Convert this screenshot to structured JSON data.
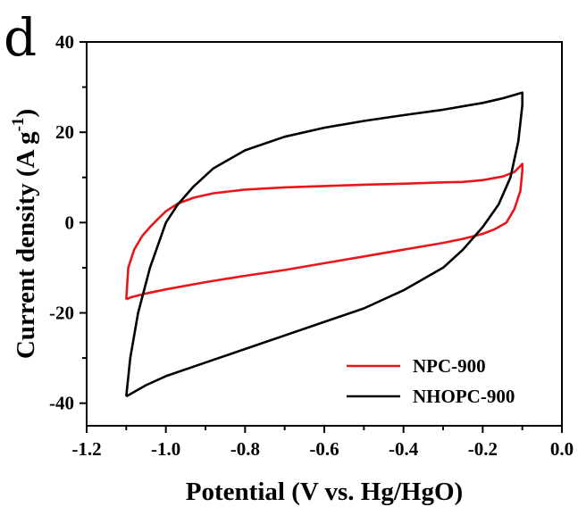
{
  "panel_label": "d",
  "chart_data": {
    "type": "line",
    "title": "",
    "xlabel": "Potential (V vs. Hg/HgO)",
    "ylabel": "Current density (A g",
    "ylabel_unit_superscript": "-1",
    "ylabel_close": ")",
    "xlim": [
      -1.2,
      0.0
    ],
    "ylim": [
      -45,
      40
    ],
    "xticks": [
      -1.2,
      -1.0,
      -0.8,
      -0.6,
      -0.4,
      -0.2,
      0.0
    ],
    "xtick_labels": [
      "-1.2",
      "-1.0",
      "-0.8",
      "-0.6",
      "-0.4",
      "-0.2",
      "0.0"
    ],
    "yticks": [
      -40,
      -20,
      0,
      20,
      40
    ],
    "ytick_labels": [
      "-40",
      "-20",
      "0",
      "20",
      "40"
    ],
    "grid": false,
    "legend_position": "bottom-right",
    "series": [
      {
        "name": "NPC-900",
        "color": "#e8161b",
        "points": [
          [
            -1.1,
            -17.0
          ],
          [
            -1.095,
            -10.0
          ],
          [
            -1.08,
            -6.0
          ],
          [
            -1.06,
            -3.0
          ],
          [
            -1.04,
            -1.0
          ],
          [
            -1.02,
            0.8
          ],
          [
            -1.0,
            2.5
          ],
          [
            -0.97,
            4.2
          ],
          [
            -0.93,
            5.5
          ],
          [
            -0.88,
            6.5
          ],
          [
            -0.8,
            7.3
          ],
          [
            -0.7,
            7.8
          ],
          [
            -0.6,
            8.1
          ],
          [
            -0.5,
            8.4
          ],
          [
            -0.4,
            8.6
          ],
          [
            -0.3,
            8.9
          ],
          [
            -0.25,
            9.0
          ],
          [
            -0.2,
            9.4
          ],
          [
            -0.15,
            10.2
          ],
          [
            -0.12,
            11.2
          ],
          [
            -0.1,
            13.0
          ],
          [
            -0.1,
            11.5
          ],
          [
            -0.105,
            7.0
          ],
          [
            -0.12,
            3.0
          ],
          [
            -0.14,
            0.0
          ],
          [
            -0.17,
            -1.5
          ],
          [
            -0.2,
            -2.5
          ],
          [
            -0.25,
            -3.6
          ],
          [
            -0.3,
            -4.5
          ],
          [
            -0.4,
            -6.0
          ],
          [
            -0.5,
            -7.5
          ],
          [
            -0.6,
            -9.0
          ],
          [
            -0.7,
            -10.5
          ],
          [
            -0.8,
            -11.8
          ],
          [
            -0.9,
            -13.2
          ],
          [
            -1.0,
            -14.8
          ],
          [
            -1.05,
            -15.7
          ],
          [
            -1.09,
            -16.6
          ],
          [
            -1.1,
            -17.0
          ]
        ]
      },
      {
        "name": "NHOPC-900",
        "color": "#000000",
        "points": [
          [
            -1.1,
            -38.5
          ],
          [
            -1.09,
            -30.0
          ],
          [
            -1.07,
            -20.0
          ],
          [
            -1.04,
            -10.0
          ],
          [
            -1.0,
            0.0
          ],
          [
            -0.97,
            4.0
          ],
          [
            -0.93,
            8.0
          ],
          [
            -0.88,
            12.0
          ],
          [
            -0.8,
            16.0
          ],
          [
            -0.7,
            19.0
          ],
          [
            -0.6,
            21.0
          ],
          [
            -0.5,
            22.5
          ],
          [
            -0.4,
            23.8
          ],
          [
            -0.3,
            25.0
          ],
          [
            -0.2,
            26.5
          ],
          [
            -0.15,
            27.5
          ],
          [
            -0.1,
            28.8
          ],
          [
            -0.1,
            26.0
          ],
          [
            -0.11,
            18.0
          ],
          [
            -0.13,
            10.0
          ],
          [
            -0.16,
            4.0
          ],
          [
            -0.2,
            -1.0
          ],
          [
            -0.25,
            -6.0
          ],
          [
            -0.3,
            -10.0
          ],
          [
            -0.4,
            -15.0
          ],
          [
            -0.5,
            -19.0
          ],
          [
            -0.6,
            -22.0
          ],
          [
            -0.7,
            -25.0
          ],
          [
            -0.8,
            -28.0
          ],
          [
            -0.9,
            -31.0
          ],
          [
            -1.0,
            -34.0
          ],
          [
            -1.05,
            -36.0
          ],
          [
            -1.1,
            -38.5
          ]
        ]
      }
    ]
  }
}
